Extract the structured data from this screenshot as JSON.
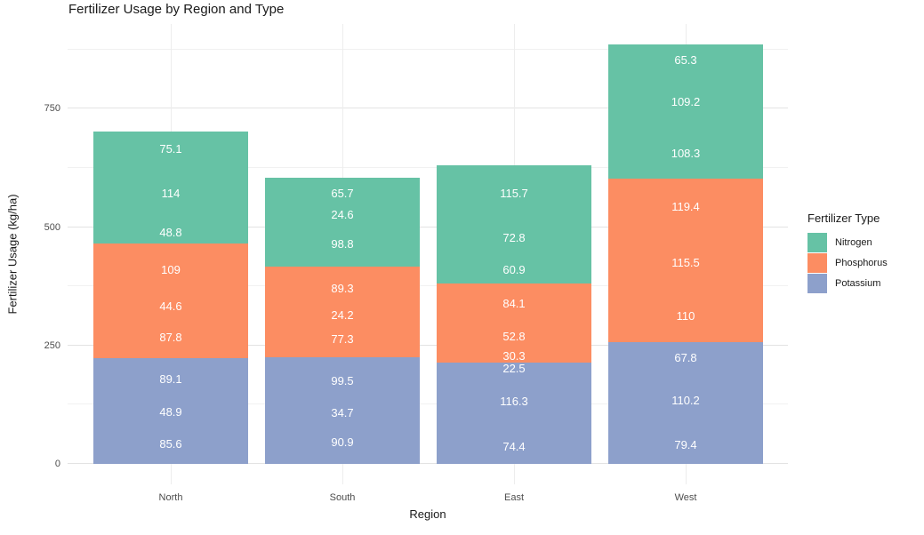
{
  "title": "Fertilizer Usage by Region and Type",
  "x_axis": {
    "label": "Region",
    "tick_labels": [
      "North",
      "South",
      "East",
      "West"
    ]
  },
  "y_axis": {
    "label": "Fertilizer Usage (kg/ha)",
    "major_ticks": [
      0,
      250,
      500,
      750
    ],
    "minor_ticks": [
      125,
      375,
      625,
      875
    ]
  },
  "legend": {
    "title": "Fertilizer Type",
    "position": "right",
    "items": [
      {
        "label": "Nitrogen",
        "color": "#66C2A5"
      },
      {
        "label": "Phosphorus",
        "color": "#FC8D62"
      },
      {
        "label": "Potassium",
        "color": "#8DA0CB"
      }
    ]
  },
  "chart_data": {
    "type": "bar",
    "stacked": true,
    "orientation": "vertical",
    "title": "Fertilizer Usage by Region and Type",
    "xlabel": "Region",
    "ylabel": "Fertilizer Usage (kg/ha)",
    "ylim": [
      0,
      929
    ],
    "grid": true,
    "legend_position": "right",
    "categories": [
      "North",
      "South",
      "East",
      "West"
    ],
    "series": [
      {
        "name": "Nitrogen",
        "color": "#66C2A5",
        "stacked_values_top_to_bottom": [
          [
            75.1,
            114,
            48.8
          ],
          [
            65.7,
            24.6,
            98.8
          ],
          [
            115.7,
            72.8,
            60.9
          ],
          [
            65.3,
            109.2,
            108.3
          ]
        ]
      },
      {
        "name": "Phosphorus",
        "color": "#FC8D62",
        "stacked_values_top_to_bottom": [
          [
            109,
            44.6,
            87.8
          ],
          [
            89.3,
            24.2,
            77.3
          ],
          [
            84.1,
            52.8,
            30.3
          ],
          [
            119.4,
            115.5,
            110
          ]
        ]
      },
      {
        "name": "Potassium",
        "color": "#8DA0CB",
        "stacked_values_top_to_bottom": [
          [
            89.1,
            48.9,
            85.6
          ],
          [
            99.5,
            34.7,
            90.9
          ],
          [
            22.5,
            116.3,
            74.4
          ],
          [
            67.8,
            110.2,
            79.4
          ]
        ]
      }
    ],
    "bars": [
      {
        "region": "North",
        "segments": [
          {
            "type": "Nitrogen",
            "value": 75.1,
            "label": "75.1"
          },
          {
            "type": "Nitrogen",
            "value": 114,
            "label": "114"
          },
          {
            "type": "Nitrogen",
            "value": 48.8,
            "label": "48.8"
          },
          {
            "type": "Phosphorus",
            "value": 109,
            "label": "109"
          },
          {
            "type": "Phosphorus",
            "value": 44.6,
            "label": "44.6"
          },
          {
            "type": "Phosphorus",
            "value": 87.8,
            "label": "87.8"
          },
          {
            "type": "Potassium",
            "value": 89.1,
            "label": "89.1"
          },
          {
            "type": "Potassium",
            "value": 48.9,
            "label": "48.9"
          },
          {
            "type": "Potassium",
            "value": 85.6,
            "label": "85.6"
          }
        ]
      },
      {
        "region": "South",
        "segments": [
          {
            "type": "Nitrogen",
            "value": 65.7,
            "label": "65.7"
          },
          {
            "type": "Nitrogen",
            "value": 24.6,
            "label": "24.6"
          },
          {
            "type": "Nitrogen",
            "value": 98.8,
            "label": "98.8"
          },
          {
            "type": "Phosphorus",
            "value": 89.3,
            "label": "89.3"
          },
          {
            "type": "Phosphorus",
            "value": 24.2,
            "label": "24.2"
          },
          {
            "type": "Phosphorus",
            "value": 77.3,
            "label": "77.3"
          },
          {
            "type": "Potassium",
            "value": 99.5,
            "label": "99.5"
          },
          {
            "type": "Potassium",
            "value": 34.7,
            "label": "34.7"
          },
          {
            "type": "Potassium",
            "value": 90.9,
            "label": "90.9"
          }
        ]
      },
      {
        "region": "East",
        "segments": [
          {
            "type": "Nitrogen",
            "value": 115.7,
            "label": "115.7"
          },
          {
            "type": "Nitrogen",
            "value": 72.8,
            "label": "72.8"
          },
          {
            "type": "Nitrogen",
            "value": 60.9,
            "label": "60.9"
          },
          {
            "type": "Phosphorus",
            "value": 84.1,
            "label": "84.1"
          },
          {
            "type": "Phosphorus",
            "value": 52.8,
            "label": "52.8"
          },
          {
            "type": "Phosphorus",
            "value": 30.3,
            "label": "30.3"
          },
          {
            "type": "Potassium",
            "value": 22.5,
            "label": "22.5"
          },
          {
            "type": "Potassium",
            "value": 116.3,
            "label": "116.3"
          },
          {
            "type": "Potassium",
            "value": 74.4,
            "label": "74.4"
          }
        ]
      },
      {
        "region": "West",
        "segments": [
          {
            "type": "Nitrogen",
            "value": 65.3,
            "label": "65.3"
          },
          {
            "type": "Nitrogen",
            "value": 109.2,
            "label": "109.2"
          },
          {
            "type": "Nitrogen",
            "value": 108.3,
            "label": "108.3"
          },
          {
            "type": "Phosphorus",
            "value": 119.4,
            "label": "119.4"
          },
          {
            "type": "Phosphorus",
            "value": 115.5,
            "label": "115.5"
          },
          {
            "type": "Phosphorus",
            "value": 110,
            "label": "110"
          },
          {
            "type": "Potassium",
            "value": 67.8,
            "label": "67.8"
          },
          {
            "type": "Potassium",
            "value": 110.2,
            "label": "110.2"
          },
          {
            "type": "Potassium",
            "value": 79.4,
            "label": "79.4"
          }
        ]
      }
    ]
  }
}
